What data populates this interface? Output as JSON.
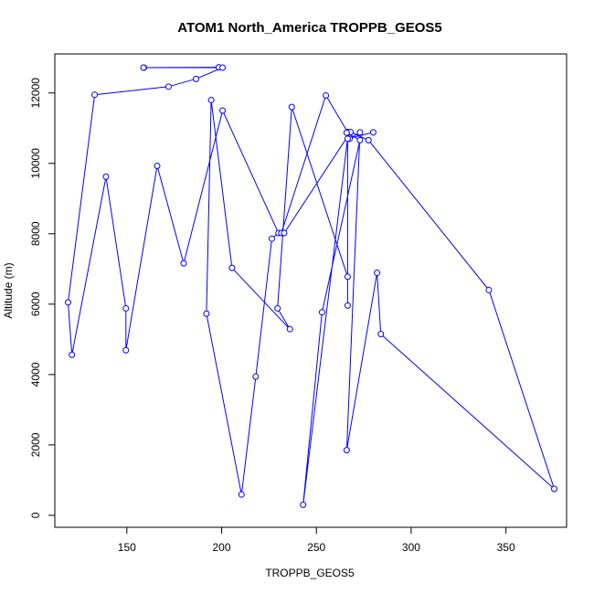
{
  "chart_data": {
    "type": "line",
    "title": "ATOM1 North_America TROPPB_GEOS5",
    "xlabel": "TROPPB_GEOS5",
    "ylabel": "Altitude (m)",
    "xlim": [
      112,
      382
    ],
    "ylim": [
      -340,
      13110
    ],
    "x_ticks": [
      150,
      200,
      250,
      300,
      350
    ],
    "y_ticks": [
      0,
      2000,
      4000,
      6000,
      8000,
      10000,
      12000
    ],
    "grid": false,
    "legend": "none",
    "marker": "open-circle",
    "color": "#0000ff",
    "series": [
      {
        "x": [
          159,
          198.5,
          158.8,
          200.5,
          186.5,
          172,
          133,
          119,
          121,
          139,
          149.5,
          149.5,
          166,
          180,
          200.5,
          230,
          226.5,
          218,
          210.5,
          192,
          194.5,
          205.5,
          236,
          229.5,
          237,
          266.5,
          266.5,
          266.5,
          255,
          231.5,
          233,
          268,
          277.5,
          341,
          375.5,
          284,
          282,
          266,
          273,
          267.5,
          266,
          273,
          253,
          243,
          266.5,
          280
        ],
        "y": [
          12720,
          12730,
          12720,
          12720,
          12400,
          12180,
          11950,
          6050,
          4560,
          9620,
          5880,
          4690,
          9930,
          7160,
          11500,
          8020,
          7860,
          3940,
          590,
          5730,
          11800,
          7030,
          5290,
          5880,
          11600,
          6780,
          5960,
          10890,
          11930,
          8020,
          8020,
          10890,
          10660,
          6400,
          750,
          5150,
          6890,
          1850,
          10880,
          10700,
          10870,
          10660,
          5770,
          300,
          10700,
          10880
        ]
      }
    ]
  }
}
